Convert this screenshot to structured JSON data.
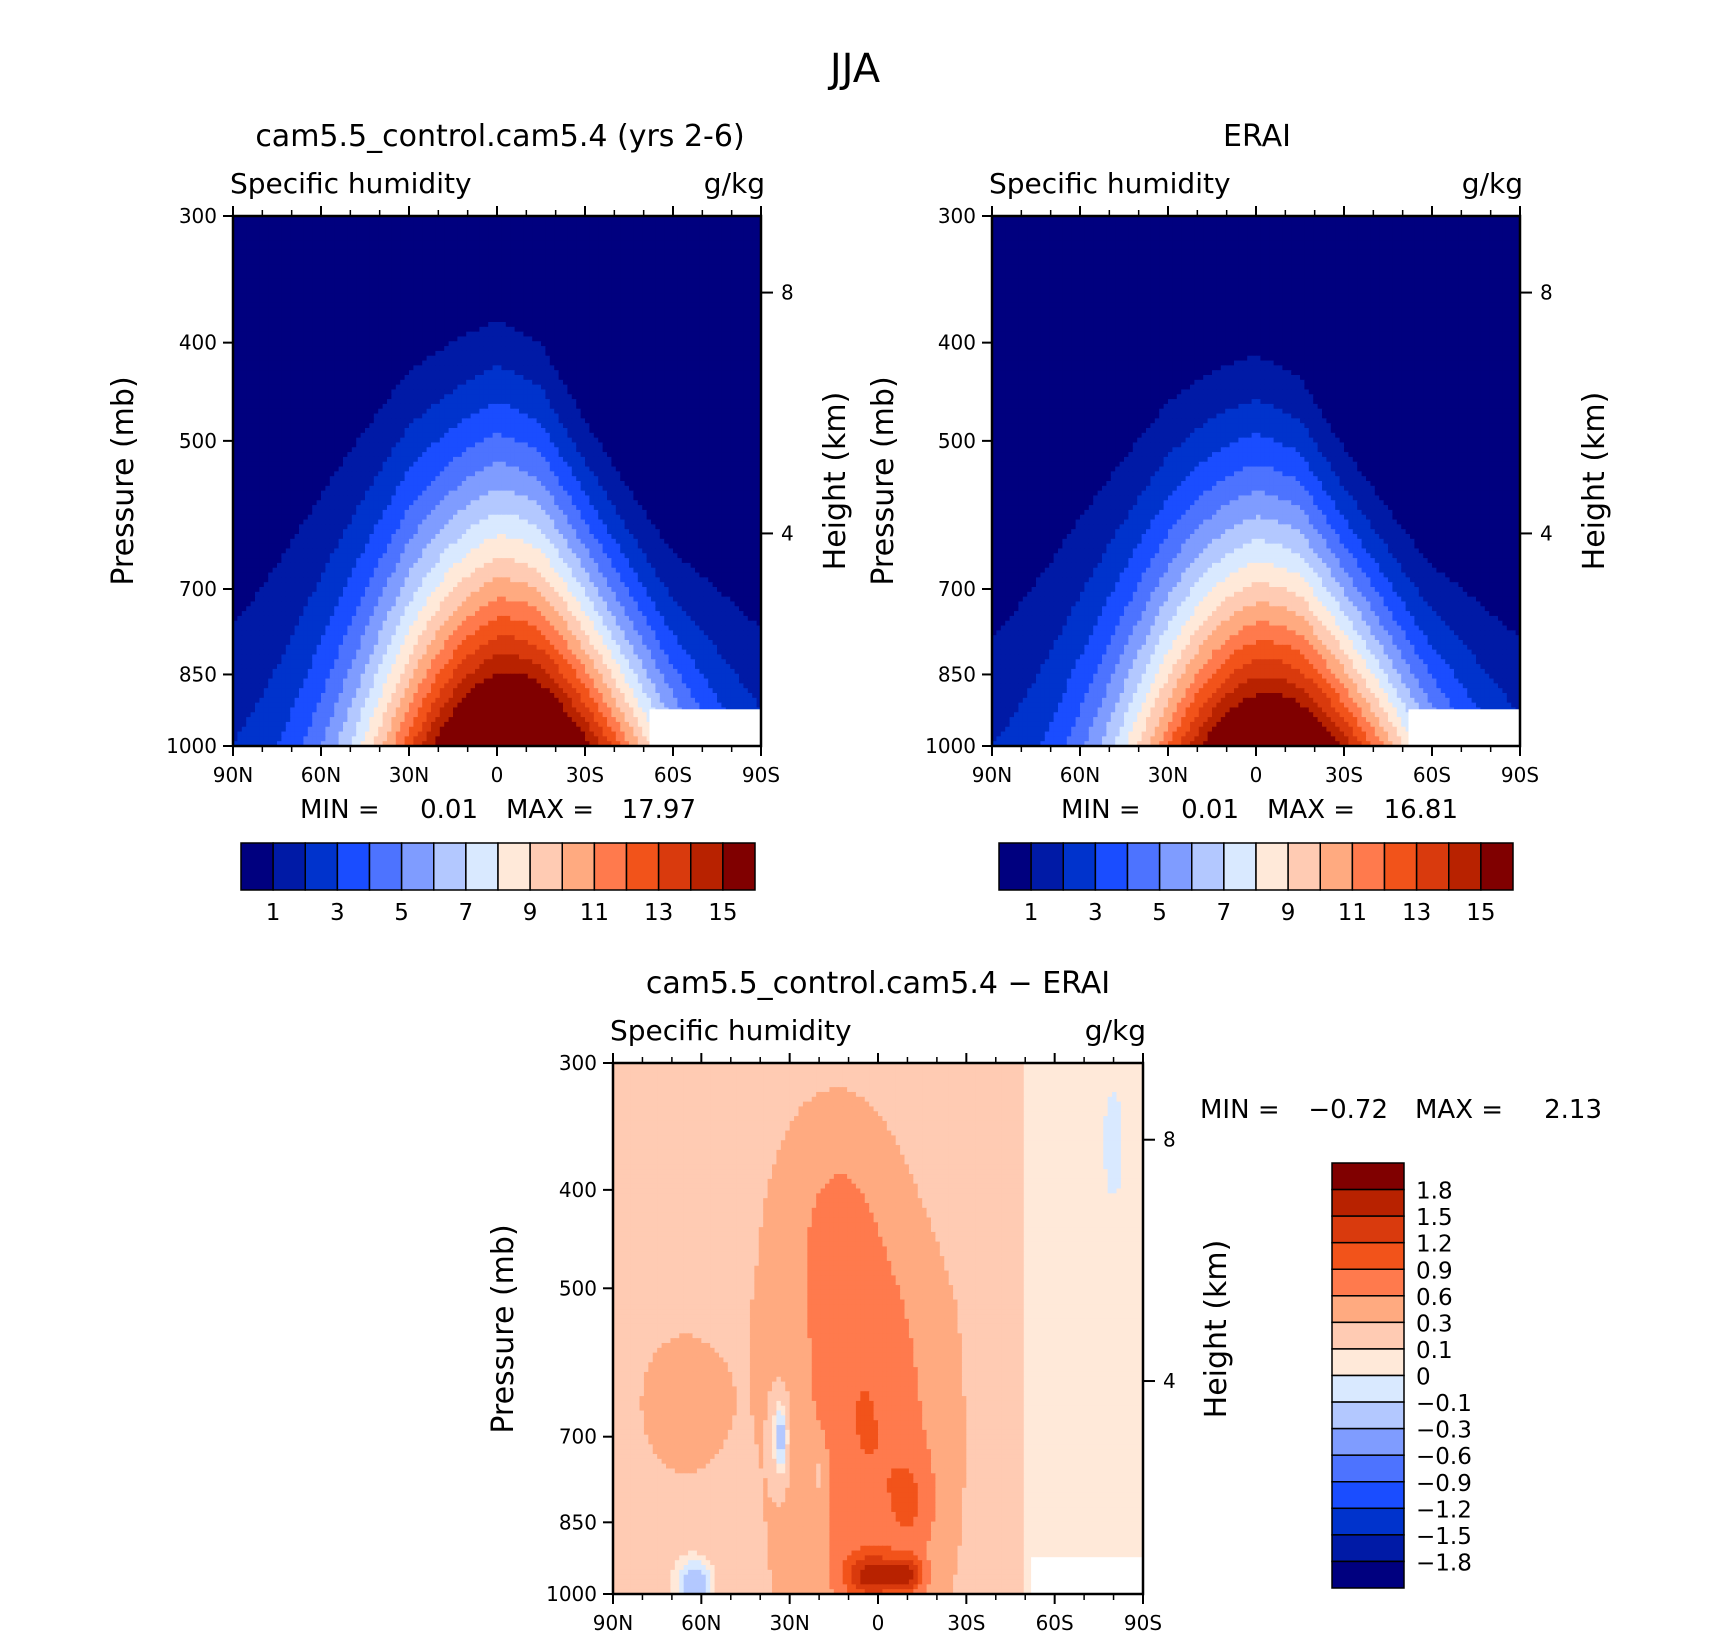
{
  "figure": {
    "title": "JJA"
  },
  "chart_data": [
    {
      "type": "heatmap",
      "id": "model",
      "title": "cam5.5_control.cam5.4 (yrs 2-6)",
      "left_label": "Specific humidity",
      "right_label": "g/kg",
      "ylabel": "Pressure (mb)",
      "y2label": "Height (km)",
      "x_ticks": [
        "90N",
        "60N",
        "30N",
        "0",
        "30S",
        "60S",
        "90S"
      ],
      "x_range": [
        90,
        -90
      ],
      "y_ticks": [
        300,
        400,
        500,
        700,
        850,
        1000
      ],
      "y_scale": "log",
      "y2_ticks": [
        "8",
        "4"
      ],
      "min_label": "MIN =",
      "min_value": "0.01",
      "max_label": "MAX =",
      "max_value": "17.97",
      "levels": [
        1,
        2,
        3,
        4,
        5,
        6,
        7,
        8,
        9,
        10,
        11,
        12,
        13,
        14,
        15
      ],
      "colorbar_labels": [
        "1",
        "3",
        "5",
        "7",
        "9",
        "11",
        "13",
        "15"
      ],
      "field": {
        "lat": [
          90,
          60,
          30,
          15,
          0,
          -15,
          -30,
          -60,
          -90
        ],
        "p_top": [
          530,
          440,
          360,
          345,
          330,
          350,
          420,
          560,
          600
        ],
        "peak_lat": -5,
        "surface_max": 17.97
      }
    },
    {
      "type": "heatmap",
      "id": "obs",
      "title": "ERAI",
      "left_label": "Specific humidity",
      "right_label": "g/kg",
      "ylabel": "Pressure (mb)",
      "y2label": "Height (km)",
      "x_ticks": [
        "90N",
        "60N",
        "30N",
        "0",
        "30S",
        "60S",
        "90S"
      ],
      "x_range": [
        90,
        -90
      ],
      "y_ticks": [
        300,
        400,
        500,
        700,
        850,
        1000
      ],
      "y_scale": "log",
      "y2_ticks": [
        "8",
        "4"
      ],
      "min_label": "MIN =",
      "min_value": "0.01",
      "max_label": "MAX =",
      "max_value": "16.81",
      "levels": [
        1,
        2,
        3,
        4,
        5,
        6,
        7,
        8,
        9,
        10,
        11,
        12,
        13,
        14,
        15
      ],
      "colorbar_labels": [
        "1",
        "3",
        "5",
        "7",
        "9",
        "11",
        "13",
        "15"
      ],
      "field": {
        "lat": [
          90,
          60,
          30,
          15,
          0,
          -15,
          -30,
          -60,
          -90
        ],
        "p_top": [
          560,
          470,
          390,
          370,
          360,
          380,
          450,
          580,
          620
        ],
        "peak_lat": -5,
        "surface_max": 16.81
      }
    },
    {
      "type": "heatmap",
      "id": "diff",
      "title": "cam5.5_control.cam5.4 − ERAI",
      "left_label": "Specific humidity",
      "right_label": "g/kg",
      "ylabel": "Pressure (mb)",
      "y2label": "Height (km)",
      "x_ticks": [
        "90N",
        "60N",
        "30N",
        "0",
        "30S",
        "60S",
        "90S"
      ],
      "x_range": [
        90,
        -90
      ],
      "y_ticks": [
        300,
        400,
        500,
        700,
        850,
        1000
      ],
      "y_scale": "log",
      "y2_ticks": [
        "8",
        "4"
      ],
      "min_label": "MIN =",
      "min_value": "−0.72",
      "max_label": "MAX =",
      "max_value": "2.13",
      "levels": [
        -1.8,
        -1.5,
        -1.2,
        -0.9,
        -0.6,
        -0.3,
        -0.1,
        0,
        0.1,
        0.3,
        0.6,
        0.9,
        1.2,
        1.5,
        1.8
      ],
      "colorbar_labels": [
        "1.8",
        "1.5",
        "1.2",
        "0.9",
        "0.6",
        "0.3",
        "0.1",
        "0",
        "−0.1",
        "−0.3",
        "−0.6",
        "−0.9",
        "−1.2",
        "−1.5",
        "−1.8"
      ],
      "field": {
        "base": [
          {
            "lat": 90,
            "p": 300,
            "v": 0.1
          },
          {
            "lat": 0,
            "p": 700,
            "v": 0.4
          },
          {
            "lat": -45,
            "p": 700,
            "v": 0.15
          }
        ],
        "blobs": [
          {
            "lat": 2,
            "p": 700,
            "v": 0.55,
            "rl": 22,
            "rp": 0.4
          },
          {
            "lat": 2,
            "p": 960,
            "v": 1.1,
            "rl": 9,
            "rp": 0.05
          },
          {
            "lat": -10,
            "p": 960,
            "v": 0.9,
            "rl": 6,
            "rp": 0.04
          },
          {
            "lat": 15,
            "p": 420,
            "v": 0.35,
            "rl": 20,
            "rp": 0.3
          },
          {
            "lat": 70,
            "p": 650,
            "v": 0.25,
            "rl": 18,
            "rp": 0.2
          },
          {
            "lat": -12,
            "p": 820,
            "v": 0.35,
            "rl": 8,
            "rp": 0.12
          },
          {
            "lat": 33,
            "p": 700,
            "v": -0.55,
            "rl": 3,
            "rp": 0.1
          },
          {
            "lat": 20,
            "p": 760,
            "v": -0.35,
            "rl": 3,
            "rp": 0.08
          },
          {
            "lat": 62,
            "p": 980,
            "v": -0.45,
            "rl": 6,
            "rp": 0.06
          },
          {
            "lat": -80,
            "p": 360,
            "v": -0.15,
            "rl": 4,
            "rp": 0.15
          }
        ]
      }
    }
  ],
  "colors": {
    "abs_scale": [
      "#00007f",
      "#001aa6",
      "#0033cc",
      "#1a4dff",
      "#4d73ff",
      "#7f9cff",
      "#b3c8ff",
      "#d9e9ff",
      "#ffe9d9",
      "#ffcbb3",
      "#ffaa80",
      "#ff7a4d",
      "#f2531a",
      "#d93a0d",
      "#b82200",
      "#800000"
    ],
    "diff_scale": [
      "#00007f",
      "#001aa6",
      "#0033cc",
      "#1a4dff",
      "#4d73ff",
      "#7f9cff",
      "#b3c8ff",
      "#d9e9ff",
      "#ffe9d9",
      "#ffcbb3",
      "#ffaa80",
      "#ff7a4d",
      "#f2531a",
      "#d93a0d",
      "#b82200",
      "#800000"
    ]
  }
}
